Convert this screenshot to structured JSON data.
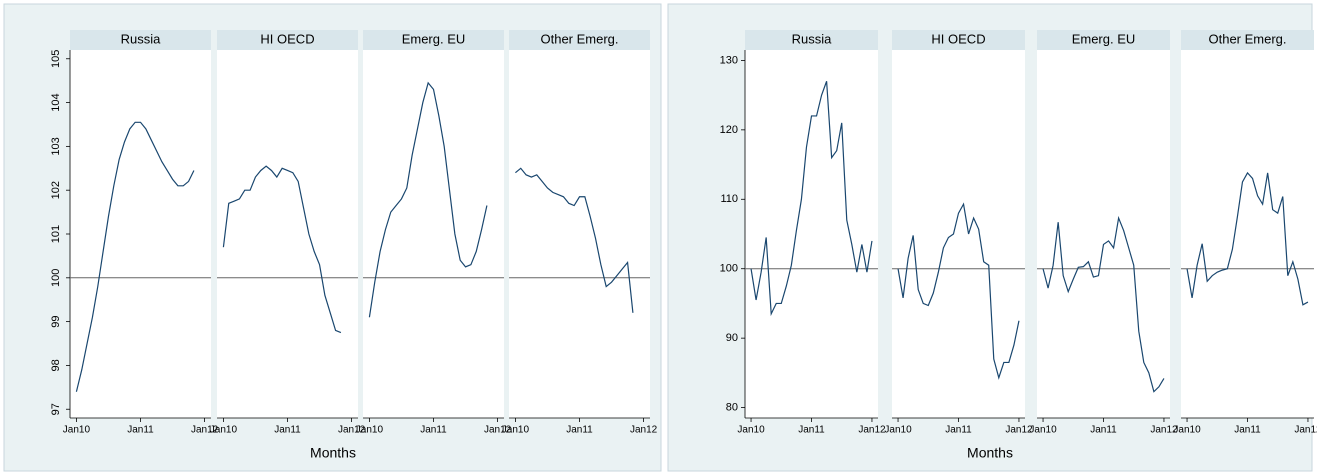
{
  "chart_data": [
    {
      "type": "line",
      "x_label": "Months",
      "hline": 100,
      "x": [
        0,
        1,
        2,
        3,
        4,
        5,
        6,
        7,
        8,
        9,
        10,
        11,
        12,
        13,
        14,
        15,
        16,
        17,
        18,
        19,
        20,
        21,
        22
      ],
      "xlim": [
        -1.2,
        25.2
      ],
      "xticks": [
        {
          "value": 0,
          "label": "Jan10"
        },
        {
          "value": 12,
          "label": "Jan11"
        },
        {
          "value": 24,
          "label": "Jan12"
        }
      ],
      "ylim": [
        96.8,
        105.2
      ],
      "yticks": [
        97,
        98,
        99,
        100,
        101,
        102,
        103,
        104,
        105
      ],
      "series": [
        {
          "name": "Russia",
          "color": "#1a476f",
          "values": [
            97.4,
            97.9,
            98.5,
            99.1,
            99.8,
            100.6,
            101.4,
            102.1,
            102.7,
            103.1,
            103.4,
            103.55,
            103.55,
            103.4,
            103.15,
            102.9,
            102.65,
            102.45,
            102.25,
            102.1,
            102.1,
            102.2,
            102.45
          ]
        },
        {
          "name": "HI OECD",
          "color": "#1a476f",
          "values": [
            100.7,
            101.7,
            101.75,
            101.8,
            102.0,
            102.0,
            102.3,
            102.45,
            102.55,
            102.45,
            102.3,
            102.5,
            102.45,
            102.4,
            102.2,
            101.6,
            101.0,
            100.6,
            100.3,
            99.6,
            99.2,
            98.8,
            98.75
          ]
        },
        {
          "name": "Emerg. EU",
          "color": "#1a476f",
          "values": [
            99.1,
            99.9,
            100.6,
            101.1,
            101.5,
            101.65,
            101.8,
            102.05,
            102.8,
            103.4,
            104.0,
            104.45,
            104.3,
            103.7,
            103.0,
            102.0,
            101.0,
            100.4,
            100.25,
            100.3,
            100.6,
            101.1,
            101.65
          ]
        },
        {
          "name": "Other Emerg.",
          "color": "#1a476f",
          "values": [
            102.4,
            102.5,
            102.35,
            102.3,
            102.35,
            102.2,
            102.05,
            101.95,
            101.9,
            101.85,
            101.7,
            101.65,
            101.85,
            101.85,
            101.4,
            100.9,
            100.3,
            99.8,
            99.9,
            100.05,
            100.2,
            100.35,
            99.2
          ]
        }
      ]
    },
    {
      "type": "line",
      "x_label": "Months",
      "hline": 100,
      "x": [
        0,
        1,
        2,
        3,
        4,
        5,
        6,
        7,
        8,
        9,
        10,
        11,
        12,
        13,
        14,
        15,
        16,
        17,
        18,
        19,
        20,
        21,
        22,
        23,
        24
      ],
      "xlim": [
        -1.2,
        25.2
      ],
      "xticks": [
        {
          "value": 0,
          "label": "Jan10"
        },
        {
          "value": 12,
          "label": "Jan11"
        },
        {
          "value": 24,
          "label": "Jan12"
        }
      ],
      "ylim": [
        78.5,
        131.5
      ],
      "yticks": [
        80,
        90,
        100,
        110,
        120,
        130
      ],
      "series": [
        {
          "name": "Russia",
          "color": "#1a476f",
          "values": [
            100,
            95.5,
            99.5,
            104.5,
            93.5,
            95,
            95,
            97.5,
            100.5,
            105.5,
            110,
            117.5,
            122,
            122,
            125,
            127,
            116,
            117,
            121,
            107,
            103.5,
            99.5,
            103.5,
            99.5,
            104
          ]
        },
        {
          "name": "HI OECD",
          "color": "#1a476f",
          "values": [
            100,
            95.8,
            101.5,
            104.8,
            97,
            95,
            94.7,
            96.5,
            99.5,
            103,
            104.5,
            105,
            108,
            109.3,
            105,
            107.3,
            105.7,
            101,
            100.5,
            87,
            84.3,
            86.5,
            86.5,
            89,
            92.5
          ]
        },
        {
          "name": "Emerg. EU",
          "color": "#1a476f",
          "values": [
            100,
            97.2,
            100.5,
            106.7,
            99,
            96.7,
            98.5,
            100.2,
            100.3,
            101,
            98.8,
            99,
            103.5,
            104,
            103,
            107.3,
            105.5,
            103,
            100.5,
            91,
            86.5,
            85,
            82.3,
            83,
            84.2
          ]
        },
        {
          "name": "Other Emerg.",
          "color": "#1a476f",
          "values": [
            100,
            95.8,
            100.5,
            103.6,
            98.2,
            99,
            99.5,
            99.8,
            100,
            102.8,
            107.5,
            112.5,
            113.8,
            113,
            110.5,
            109.3,
            113.8,
            108.5,
            108,
            110.4,
            99,
            101,
            98.5,
            94.8,
            95.2
          ]
        }
      ]
    }
  ]
}
